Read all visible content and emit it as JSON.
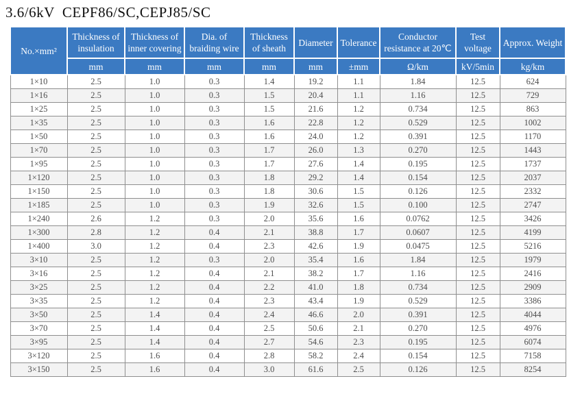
{
  "title": "3.6/6kV  CEPF86/SC,CEPJ85/SC",
  "colors": {
    "header_bg": "#3b7ac2",
    "header_text": "#ffffff",
    "row_alt_bg": "#f3f3f3",
    "grid_border": "#8e8e8e",
    "cell_text": "#4d4d4d",
    "title_text": "#111111"
  },
  "table": {
    "corner_label": "No.×mm²",
    "columns": [
      {
        "label": "Thickness of insulation",
        "unit": "mm"
      },
      {
        "label": "Thickness of inner covering",
        "unit": "mm"
      },
      {
        "label": "Dia. of braiding wire",
        "unit": "mm"
      },
      {
        "label": "Thickness of sheath",
        "unit": "mm"
      },
      {
        "label": "Diameter",
        "unit": "mm"
      },
      {
        "label": "Tolerance",
        "unit": "±mm"
      },
      {
        "label": "Conductor resistance at 20℃",
        "unit": "Ω/km"
      },
      {
        "label": "Test voltage",
        "unit": "kV/5min"
      },
      {
        "label": "Approx. Weight",
        "unit": "kg/km"
      }
    ],
    "rows": [
      [
        "1×10",
        "2.5",
        "1.0",
        "0.3",
        "1.4",
        "19.2",
        "1.1",
        "1.84",
        "12.5",
        "624"
      ],
      [
        "1×16",
        "2.5",
        "1.0",
        "0.3",
        "1.5",
        "20.4",
        "1.1",
        "1.16",
        "12.5",
        "729"
      ],
      [
        "1×25",
        "2.5",
        "1.0",
        "0.3",
        "1.5",
        "21.6",
        "1.2",
        "0.734",
        "12.5",
        "863"
      ],
      [
        "1×35",
        "2.5",
        "1.0",
        "0.3",
        "1.6",
        "22.8",
        "1.2",
        "0.529",
        "12.5",
        "1002"
      ],
      [
        "1×50",
        "2.5",
        "1.0",
        "0.3",
        "1.6",
        "24.0",
        "1.2",
        "0.391",
        "12.5",
        "1170"
      ],
      [
        "1×70",
        "2.5",
        "1.0",
        "0.3",
        "1.7",
        "26.0",
        "1.3",
        "0.270",
        "12.5",
        "1443"
      ],
      [
        "1×95",
        "2.5",
        "1.0",
        "0.3",
        "1.7",
        "27.6",
        "1.4",
        "0.195",
        "12.5",
        "1737"
      ],
      [
        "1×120",
        "2.5",
        "1.0",
        "0.3",
        "1.8",
        "29.2",
        "1.4",
        "0.154",
        "12.5",
        "2037"
      ],
      [
        "1×150",
        "2.5",
        "1.0",
        "0.3",
        "1.8",
        "30.6",
        "1.5",
        "0.126",
        "12.5",
        "2332"
      ],
      [
        "1×185",
        "2.5",
        "1.0",
        "0.3",
        "1.9",
        "32.6",
        "1.5",
        "0.100",
        "12.5",
        "2747"
      ],
      [
        "1×240",
        "2.6",
        "1.2",
        "0.3",
        "2.0",
        "35.6",
        "1.6",
        "0.0762",
        "12.5",
        "3426"
      ],
      [
        "1×300",
        "2.8",
        "1.2",
        "0.4",
        "2.1",
        "38.8",
        "1.7",
        "0.0607",
        "12.5",
        "4199"
      ],
      [
        "1×400",
        "3.0",
        "1.2",
        "0.4",
        "2.3",
        "42.6",
        "1.9",
        "0.0475",
        "12.5",
        "5216"
      ],
      [
        "3×10",
        "2.5",
        "1.2",
        "0.3",
        "2.0",
        "35.4",
        "1.6",
        "1.84",
        "12.5",
        "1979"
      ],
      [
        "3×16",
        "2.5",
        "1.2",
        "0.4",
        "2.1",
        "38.2",
        "1.7",
        "1.16",
        "12.5",
        "2416"
      ],
      [
        "3×25",
        "2.5",
        "1.2",
        "0.4",
        "2.2",
        "41.0",
        "1.8",
        "0.734",
        "12.5",
        "2909"
      ],
      [
        "3×35",
        "2.5",
        "1.2",
        "0.4",
        "2.3",
        "43.4",
        "1.9",
        "0.529",
        "12.5",
        "3386"
      ],
      [
        "3×50",
        "2.5",
        "1.4",
        "0.4",
        "2.4",
        "46.6",
        "2.0",
        "0.391",
        "12.5",
        "4044"
      ],
      [
        "3×70",
        "2.5",
        "1.4",
        "0.4",
        "2.5",
        "50.6",
        "2.1",
        "0.270",
        "12.5",
        "4976"
      ],
      [
        "3×95",
        "2.5",
        "1.4",
        "0.4",
        "2.7",
        "54.6",
        "2.3",
        "0.195",
        "12.5",
        "6074"
      ],
      [
        "3×120",
        "2.5",
        "1.6",
        "0.4",
        "2.8",
        "58.2",
        "2.4",
        "0.154",
        "12.5",
        "7158"
      ],
      [
        "3×150",
        "2.5",
        "1.6",
        "0.4",
        "3.0",
        "61.6",
        "2.5",
        "0.126",
        "12.5",
        "8254"
      ]
    ]
  }
}
